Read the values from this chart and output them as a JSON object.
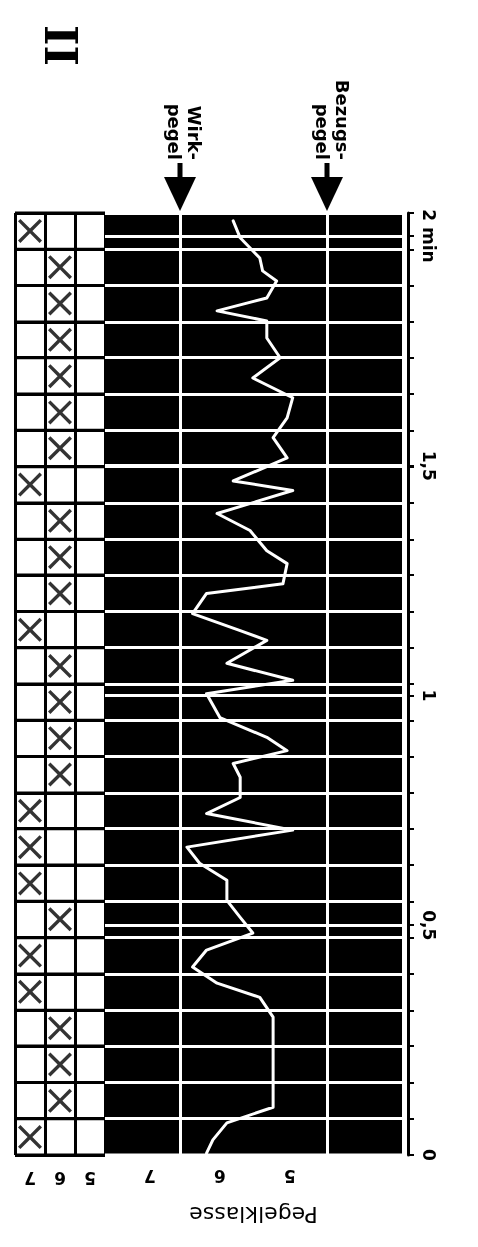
{
  "chart_data": [
    {
      "type": "scatter",
      "title": "II",
      "categories": [
        "7",
        "6",
        "5"
      ],
      "marker": "cross",
      "grid": true,
      "tick_labels": "x",
      "ylim": [
        0,
        2.05
      ],
      "yticks": [
        {
          "value": 0,
          "label": null
        },
        {
          "value": 0.079,
          "label": null
        },
        {
          "value": 0.158,
          "label": null
        },
        {
          "value": 0.237,
          "label": null
        },
        {
          "value": 0.315,
          "label": null
        },
        {
          "value": 0.394,
          "label": null
        },
        {
          "value": 0.473,
          "label": null
        },
        {
          "value": 0.552,
          "label": null
        },
        {
          "value": 0.631,
          "label": null
        },
        {
          "value": 0.71,
          "label": null
        },
        {
          "value": 0.788,
          "label": null
        },
        {
          "value": 0.867,
          "label": null
        },
        {
          "value": 0.946,
          "label": null
        },
        {
          "value": 1.025,
          "label": null
        },
        {
          "value": 1.104,
          "label": null
        },
        {
          "value": 1.183,
          "label": null
        },
        {
          "value": 1.262,
          "label": null
        },
        {
          "value": 1.34,
          "label": null
        },
        {
          "value": 1.419,
          "label": null
        },
        {
          "value": 1.498,
          "label": null
        },
        {
          "value": 1.577,
          "label": null
        },
        {
          "value": 1.656,
          "label": null
        },
        {
          "value": 1.735,
          "label": null
        },
        {
          "value": 1.813,
          "label": null
        },
        {
          "value": 1.892,
          "label": null
        },
        {
          "value": 1.971,
          "label": null
        },
        {
          "value": 2.05,
          "label": null
        }
      ],
      "series": [
        {
          "color": "#000000",
          "x": [
            "7",
            "6",
            "6",
            "6",
            "7",
            "7",
            "6",
            "7",
            "7",
            "7",
            "6",
            "6",
            "6",
            "6",
            "7",
            "6",
            "6",
            "6",
            "7",
            "6",
            "6",
            "6",
            "6",
            "6",
            "6",
            "7"
          ],
          "values": [
            0.039,
            0.118,
            0.197,
            0.276,
            0.355,
            0.434,
            0.513,
            0.591,
            0.67,
            0.749,
            0.828,
            0.907,
            0.986,
            1.064,
            1.143,
            1.222,
            1.301,
            1.38,
            1.459,
            1.538,
            1.616,
            1.695,
            1.774,
            1.853,
            1.932,
            2.011
          ]
        }
      ]
    },
    {
      "type": "line",
      "xlabel": "Pegelklasse",
      "marker": "none",
      "line_style": "solid",
      "grid": "y",
      "xlim": [
        7.64,
        3.4
      ],
      "xticks": [
        7,
        6,
        5
      ],
      "ylim": [
        0,
        2.05
      ],
      "yticks": [
        0,
        {
          "value": 0.079,
          "label": null
        },
        {
          "value": 0.158,
          "label": null
        },
        {
          "value": 0.237,
          "label": null
        },
        {
          "value": 0.315,
          "label": null
        },
        {
          "value": 0.394,
          "label": null
        },
        {
          "value": 0.473,
          "label": null
        },
        {
          "value": 0.5,
          "label": "0,5"
        },
        {
          "value": 0.552,
          "label": null
        },
        {
          "value": 0.631,
          "label": null
        },
        {
          "value": 0.71,
          "label": null
        },
        {
          "value": 0.788,
          "label": null
        },
        {
          "value": 0.867,
          "label": null
        },
        {
          "value": 0.946,
          "label": null
        },
        1,
        {
          "value": 1.025,
          "label": null
        },
        {
          "value": 1.104,
          "label": null
        },
        {
          "value": 1.183,
          "label": null
        },
        {
          "value": 1.262,
          "label": null
        },
        {
          "value": 1.34,
          "label": null
        },
        {
          "value": 1.419,
          "label": null
        },
        {
          "value": 1.498,
          "label": null
        },
        {
          "value": 1.5,
          "label": "1,5"
        },
        {
          "value": 1.577,
          "label": null
        },
        {
          "value": 1.656,
          "label": null
        },
        {
          "value": 1.735,
          "label": null
        },
        {
          "value": 1.813,
          "label": null
        },
        {
          "value": 1.892,
          "label": null
        },
        {
          "value": 1.971,
          "label": null
        },
        {
          "value": 2,
          "label": "2 min"
        },
        {
          "value": 2.05,
          "label": null
        }
      ],
      "ref_lines": [
        {
          "axis": "x",
          "value": 6.57,
          "label": "Wirk-\npegel",
          "color": "#ffffff"
        },
        {
          "axis": "x",
          "value": 4.47,
          "label": "Bezugs-\npegel",
          "color": "#ffffff"
        }
      ],
      "series": [
        {
          "color": "#ffffff",
          "x": [
            6.19,
            6.1,
            5.9,
            5.24,
            5.24,
            5.24,
            5.24,
            5.24,
            5.43,
            6.04,
            6.39,
            6.19,
            5.53,
            5.71,
            5.9,
            5.9,
            6.29,
            6.47,
            4.96,
            6.19,
            5.71,
            5.71,
            5.81,
            5.04,
            5.33,
            6.0,
            6.19,
            4.96,
            5.9,
            5.33,
            5.71,
            6.39,
            6.19,
            5.1,
            5.04,
            5.33,
            5.57,
            6.04,
            4.96,
            5.81,
            5.04,
            5.24,
            5.04,
            4.96,
            5.53,
            5.14,
            5.33,
            5.33,
            6.04,
            5.33,
            5.19,
            5.39,
            5.43,
            5.71,
            5.81
          ],
          "values": [
            0.004,
            0.033,
            0.07,
            0.104,
            0.141,
            0.2,
            0.25,
            0.3,
            0.343,
            0.374,
            0.409,
            0.446,
            0.483,
            0.517,
            0.554,
            0.598,
            0.635,
            0.67,
            0.707,
            0.743,
            0.778,
            0.822,
            0.852,
            0.88,
            0.909,
            0.952,
            1.004,
            1.033,
            1.07,
            1.12,
            1.141,
            1.178,
            1.222,
            1.243,
            1.287,
            1.315,
            1.359,
            1.396,
            1.446,
            1.467,
            1.517,
            1.561,
            1.604,
            1.648,
            1.691,
            1.735,
            1.778,
            1.815,
            1.837,
            1.865,
            1.902,
            1.924,
            1.952,
            1.996,
            2.033
          ]
        }
      ]
    }
  ]
}
